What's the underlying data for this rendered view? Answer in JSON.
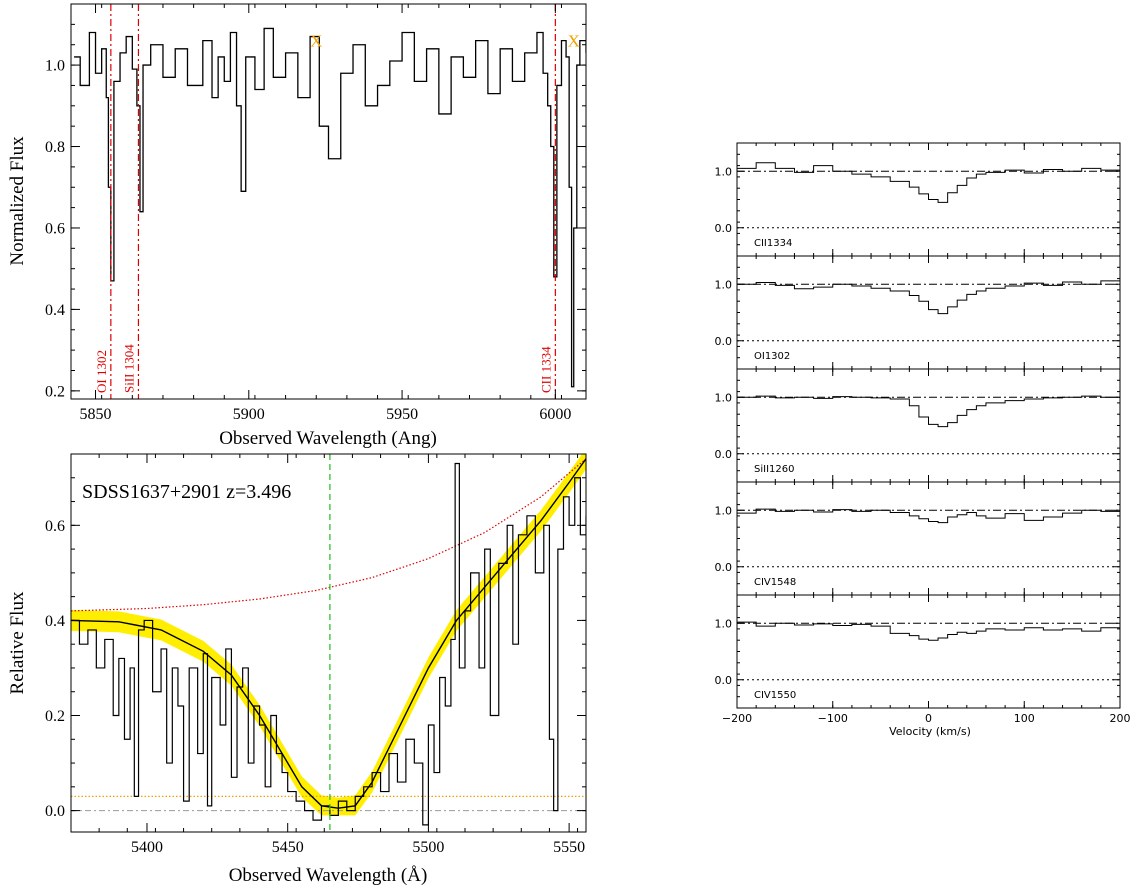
{
  "chart_data": [
    {
      "id": "top",
      "type": "line",
      "title": "",
      "xlabel": "Observed Wavelength (Ang)",
      "ylabel": "Normalized Flux",
      "xlim": [
        5842,
        6010
      ],
      "ylim": [
        0.18,
        1.15
      ],
      "xticks": [
        5850,
        5900,
        5950,
        6000
      ],
      "yticks": [
        0.2,
        0.4,
        0.6,
        0.8,
        1.0
      ],
      "ytick_labels": [
        "0.2",
        "0.4",
        "0.6",
        "0.8",
        "1.0"
      ],
      "series": [
        {
          "x": [
            5843,
            5845,
            5848,
            5850,
            5852,
            5853.5,
            5854.2,
            5855,
            5856,
            5858,
            5860,
            5862,
            5863.5,
            5864.5,
            5865.5,
            5868,
            5872,
            5876,
            5880,
            5885,
            5888,
            5890,
            5892,
            5894,
            5896,
            5897.5,
            5899,
            5902,
            5905,
            5908,
            5912,
            5916,
            5920,
            5923,
            5926,
            5930,
            5934,
            5938,
            5942,
            5946,
            5950,
            5954,
            5958,
            5962,
            5966,
            5970,
            5974,
            5978,
            5982,
            5986,
            5990,
            5994,
            5996,
            5997.5,
            5998.5,
            5999.5,
            6000.5,
            6002,
            6003.5,
            6004.5,
            6005.3,
            6006,
            6007,
            6008,
            6010
          ],
          "values": [
            1.02,
            0.95,
            1.08,
            0.98,
            1.04,
            0.92,
            0.7,
            0.47,
            0.96,
            1.03,
            1.07,
            0.99,
            0.9,
            0.64,
            1.0,
            1.05,
            0.97,
            1.04,
            0.95,
            1.06,
            0.92,
            1.02,
            0.96,
            1.08,
            0.9,
            0.69,
            1.02,
            0.94,
            1.09,
            0.97,
            1.03,
            0.92,
            1.07,
            0.85,
            0.77,
            0.98,
            1.05,
            0.9,
            0.95,
            1.01,
            1.08,
            0.96,
            1.04,
            0.88,
            1.02,
            0.97,
            1.06,
            0.93,
            1.04,
            0.96,
            1.03,
            1.08,
            0.98,
            0.9,
            0.8,
            0.48,
            0.95,
            1.06,
            1.02,
            0.7,
            0.21,
            0.6,
            1.0,
            1.06,
            1.03
          ]
        }
      ],
      "markers": [
        {
          "x": 5855,
          "label": "OI 1302",
          "color": "#dd0000"
        },
        {
          "x": 5864,
          "label": "SiII 1304",
          "color": "#dd0000"
        },
        {
          "x": 6000,
          "label": "CII 1334",
          "color": "#dd0000"
        }
      ],
      "symbols": [
        {
          "x": 5922,
          "y": 1.06,
          "label": "X",
          "color": "#f2a100"
        },
        {
          "x": 6006,
          "y": 1.06,
          "label": "X",
          "color": "#f2a100"
        }
      ]
    },
    {
      "id": "bottom",
      "type": "line",
      "title": "SDSS1637+2901 z=3.496",
      "xlabel": "Observed Wavelength (Å)",
      "ylabel": "Relative Flux",
      "xlim": [
        5373,
        5556
      ],
      "ylim": [
        -0.045,
        0.75
      ],
      "xticks": [
        5400,
        5450,
        5500,
        5550
      ],
      "yticks": [
        0.0,
        0.2,
        0.4,
        0.6
      ],
      "ytick_labels": [
        "0.0",
        "0.2",
        "0.4",
        "0.6"
      ],
      "center_line": {
        "x": 5465,
        "color": "#22bb22"
      },
      "continuum": {
        "x": [
          5373,
          5400,
          5420,
          5440,
          5460,
          5480,
          5500,
          5520,
          5540,
          5556
        ],
        "values": [
          0.42,
          0.425,
          0.433,
          0.445,
          0.463,
          0.49,
          0.53,
          0.585,
          0.66,
          0.74
        ],
        "color": "#dd0000"
      },
      "error_curve": {
        "level": 0.03,
        "color": "#f2a100"
      },
      "zero_line": {
        "y": 0.0,
        "color": "#999999"
      },
      "fit": {
        "x": [
          5373,
          5390,
          5405,
          5420,
          5430,
          5440,
          5447,
          5455,
          5462,
          5468,
          5474,
          5480,
          5490,
          5500,
          5510,
          5520,
          5530,
          5540,
          5550,
          5556
        ],
        "values": [
          0.4,
          0.397,
          0.38,
          0.335,
          0.285,
          0.2,
          0.13,
          0.05,
          0.01,
          0.005,
          0.01,
          0.06,
          0.18,
          0.3,
          0.4,
          0.47,
          0.54,
          0.61,
          0.69,
          0.74
        ],
        "color": "#000000",
        "band_color": "#ffee00"
      },
      "series": [
        {
          "x": [
            5373,
            5376,
            5379,
            5382,
            5385,
            5388,
            5390,
            5392,
            5394,
            5395.5,
            5397,
            5399,
            5402,
            5405,
            5407,
            5409,
            5411,
            5413,
            5415,
            5418,
            5420,
            5421.5,
            5423,
            5426,
            5428,
            5430,
            5432,
            5434,
            5436,
            5438,
            5440,
            5442,
            5444,
            5446,
            5448,
            5450,
            5453,
            5456,
            5459,
            5462,
            5465,
            5468,
            5471,
            5474,
            5477,
            5480,
            5483,
            5486,
            5489,
            5492,
            5495,
            5498,
            5500,
            5502,
            5504,
            5506,
            5508,
            5509.5,
            5511,
            5513,
            5515,
            5518,
            5520,
            5522,
            5525,
            5528,
            5530,
            5532,
            5535,
            5538,
            5541,
            5543,
            5544.5,
            5546,
            5548,
            5550,
            5552,
            5554,
            5556
          ],
          "values": [
            0.4,
            0.35,
            0.38,
            0.3,
            0.36,
            0.2,
            0.32,
            0.15,
            0.3,
            0.03,
            0.38,
            0.4,
            0.25,
            0.34,
            0.1,
            0.3,
            0.22,
            0.02,
            0.3,
            0.12,
            0.33,
            0.01,
            0.28,
            0.18,
            0.34,
            0.07,
            0.26,
            0.3,
            0.1,
            0.22,
            0.18,
            0.05,
            0.2,
            0.12,
            0.08,
            0.04,
            0.02,
            0.0,
            -0.02,
            0.01,
            -0.01,
            0.02,
            0.0,
            0.03,
            0.05,
            0.08,
            0.04,
            0.12,
            0.06,
            0.15,
            0.1,
            -0.03,
            0.18,
            0.08,
            0.28,
            0.22,
            0.36,
            0.73,
            0.3,
            0.42,
            0.5,
            0.3,
            0.55,
            0.2,
            0.52,
            0.6,
            0.35,
            0.58,
            0.62,
            0.5,
            0.6,
            0.15,
            0.0,
            0.55,
            0.66,
            0.6,
            0.7,
            0.58,
            0.62
          ]
        }
      ]
    },
    {
      "id": "velocity",
      "type": "line",
      "title": "",
      "xlabel": "Velocity (km/s)",
      "ylabel": "",
      "xlim": [
        -200,
        200
      ],
      "ylim": [
        -0.5,
        1.5
      ],
      "xticks": [
        -200,
        -100,
        0,
        100,
        200
      ],
      "xtick_labels": [
        "−200",
        "−100",
        "0",
        "100",
        "200"
      ],
      "yticks": [
        0.0,
        1.0
      ],
      "ytick_labels": [
        "0.0",
        "1.0"
      ],
      "panels": [
        {
          "label": "CII1334",
          "v": [
            -200,
            -180,
            -160,
            -140,
            -120,
            -100,
            -80,
            -60,
            -40,
            -20,
            -10,
            0,
            10,
            20,
            30,
            40,
            50,
            60,
            80,
            100,
            120,
            140,
            160,
            180,
            200
          ],
          "flux": [
            1.05,
            1.15,
            1.05,
            0.98,
            1.1,
            1.0,
            0.95,
            0.9,
            0.82,
            0.72,
            0.6,
            0.5,
            0.45,
            0.62,
            0.75,
            0.88,
            0.95,
            0.98,
            1.02,
            0.97,
            1.03,
            1.0,
            1.05,
            1.02,
            1.06
          ]
        },
        {
          "label": "OI1302",
          "v": [
            -200,
            -180,
            -160,
            -140,
            -120,
            -100,
            -80,
            -60,
            -40,
            -20,
            -10,
            0,
            10,
            20,
            30,
            40,
            50,
            60,
            80,
            100,
            120,
            140,
            160,
            180,
            200
          ],
          "flux": [
            1.0,
            1.03,
            0.98,
            0.92,
            0.95,
            1.0,
            0.97,
            0.93,
            0.88,
            0.8,
            0.7,
            0.55,
            0.48,
            0.6,
            0.72,
            0.82,
            0.88,
            0.93,
            0.97,
            1.02,
            0.98,
            1.04,
            1.0,
            1.06,
            1.08
          ]
        },
        {
          "label": "SiII1260",
          "v": [
            -200,
            -180,
            -160,
            -140,
            -120,
            -100,
            -80,
            -60,
            -40,
            -20,
            -10,
            0,
            10,
            20,
            30,
            40,
            50,
            60,
            80,
            100,
            120,
            140,
            160,
            180,
            200
          ],
          "flux": [
            1.0,
            1.02,
            0.99,
            1.0,
            0.98,
            1.01,
            1.0,
            0.99,
            0.97,
            0.85,
            0.65,
            0.52,
            0.48,
            0.55,
            0.68,
            0.78,
            0.85,
            0.9,
            0.94,
            0.97,
            0.99,
            1.0,
            1.02,
            1.0,
            1.03
          ]
        },
        {
          "label": "CIV1548",
          "v": [
            -200,
            -180,
            -160,
            -140,
            -120,
            -100,
            -80,
            -60,
            -40,
            -20,
            -10,
            0,
            10,
            20,
            30,
            40,
            50,
            60,
            80,
            100,
            120,
            140,
            160,
            180,
            200
          ],
          "flux": [
            0.95,
            1.02,
            0.98,
            1.0,
            0.97,
            1.01,
            0.98,
            1.0,
            0.96,
            0.9,
            0.85,
            0.8,
            0.78,
            0.88,
            0.92,
            0.96,
            0.9,
            0.86,
            0.94,
            0.82,
            0.88,
            0.95,
            1.0,
            0.98,
            1.02
          ]
        },
        {
          "label": "CIV1550",
          "v": [
            -200,
            -180,
            -160,
            -140,
            -120,
            -100,
            -80,
            -60,
            -40,
            -20,
            -10,
            0,
            10,
            20,
            30,
            40,
            50,
            60,
            80,
            100,
            120,
            140,
            160,
            180,
            200
          ],
          "flux": [
            1.02,
            0.95,
            1.0,
            0.97,
            0.99,
            0.96,
            0.98,
            0.95,
            0.82,
            0.78,
            0.72,
            0.7,
            0.74,
            0.8,
            0.84,
            0.82,
            0.86,
            0.9,
            0.88,
            0.92,
            0.88,
            0.9,
            0.86,
            0.92,
            0.7
          ]
        }
      ]
    }
  ]
}
